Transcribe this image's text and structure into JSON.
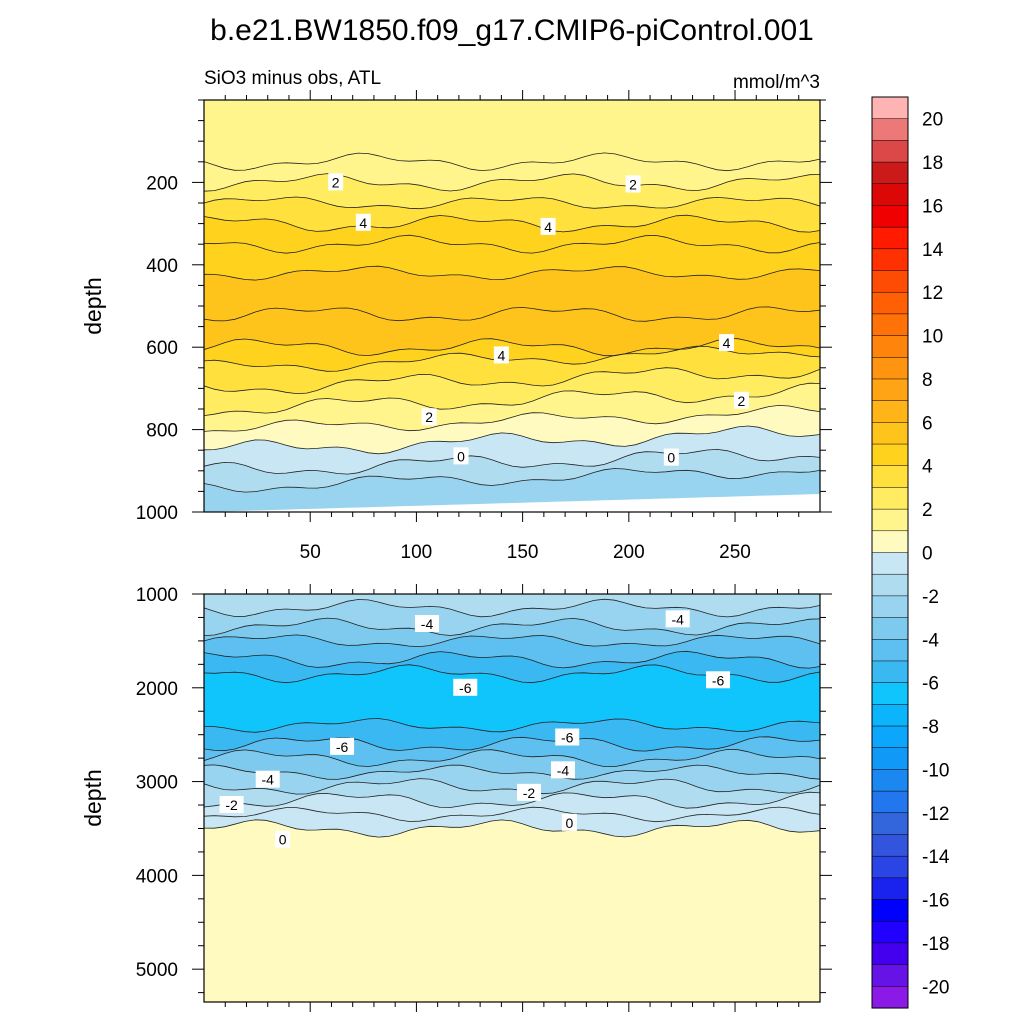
{
  "figure": {
    "title": "b.e21.BW1850.f09_g17.CMIP6-piControl.001",
    "panel_label": "SiO3 minus obs, ATL",
    "units_label": "mmol/m^3"
  },
  "chart_data": [
    {
      "type": "heatmap",
      "panel": "upper",
      "subtitle": "SiO3 minus obs, ATL",
      "units": "mmol/m^3",
      "xlabel": "",
      "ylabel": "depth",
      "xlim": [
        0,
        290
      ],
      "ylim": [
        1000,
        0
      ],
      "x_ticks": [
        50,
        100,
        150,
        200,
        250
      ],
      "y_ticks": [
        200,
        400,
        600,
        800,
        1000
      ],
      "depth_levels": [
        0,
        150,
        200,
        250,
        300,
        350,
        420,
        520,
        600,
        650,
        700,
        750,
        800,
        850,
        900,
        940,
        1000
      ],
      "band_values": [
        1,
        1.5,
        2.5,
        3.5,
        4.2,
        4.6,
        5.2,
        5.2,
        4.5,
        3.5,
        2.5,
        1.5,
        0.5,
        -0.5,
        -1.3,
        -2.2
      ],
      "contour_labels": [
        {
          "text": "2",
          "x": 62,
          "depth": 200
        },
        {
          "text": "2",
          "x": 202,
          "depth": 205
        },
        {
          "text": "4",
          "x": 75,
          "depth": 298
        },
        {
          "text": "4",
          "x": 162,
          "depth": 308
        },
        {
          "text": "4",
          "x": 140,
          "depth": 620
        },
        {
          "text": "4",
          "x": 246,
          "depth": 590
        },
        {
          "text": "2",
          "x": 106,
          "depth": 770
        },
        {
          "text": "2",
          "x": 253,
          "depth": 730
        },
        {
          "text": "0",
          "x": 121,
          "depth": 865
        },
        {
          "text": "0",
          "x": 220,
          "depth": 868
        }
      ]
    },
    {
      "type": "heatmap",
      "panel": "lower",
      "xlabel": "",
      "ylabel": "depth",
      "xlim": [
        0,
        290
      ],
      "ylim": [
        5350,
        1000
      ],
      "x_ticks": [
        50,
        100,
        150,
        200,
        250
      ],
      "y_ticks": [
        1000,
        2000,
        3000,
        4000,
        5000
      ],
      "depth_levels": [
        1000,
        1150,
        1350,
        1500,
        1700,
        1850,
        2400,
        2600,
        2750,
        2900,
        3050,
        3200,
        3350,
        3500,
        5350
      ],
      "band_values": [
        -1.5,
        -2.5,
        -3.5,
        -4.5,
        -5.5,
        -6.5,
        -5.5,
        -4.5,
        -3.5,
        -2.5,
        -1.5,
        -0.7,
        -0.3,
        0.8
      ],
      "contour_labels": [
        {
          "text": "-4",
          "x": 105,
          "depth": 1320
        },
        {
          "text": "-4",
          "x": 223,
          "depth": 1270
        },
        {
          "text": "-6",
          "x": 123,
          "depth": 2000
        },
        {
          "text": "-6",
          "x": 242,
          "depth": 1920
        },
        {
          "text": "-6",
          "x": 65,
          "depth": 2630
        },
        {
          "text": "-6",
          "x": 171,
          "depth": 2530
        },
        {
          "text": "-4",
          "x": 30,
          "depth": 2980
        },
        {
          "text": "-4",
          "x": 169,
          "depth": 2880
        },
        {
          "text": "-2",
          "x": 13,
          "depth": 3250
        },
        {
          "text": "-2",
          "x": 153,
          "depth": 3120
        },
        {
          "text": "0",
          "x": 37,
          "depth": 3620
        },
        {
          "text": "0",
          "x": 172,
          "depth": 3440
        }
      ]
    }
  ],
  "colorbar": {
    "levels": [
      -21,
      -20,
      -19,
      -18,
      -17,
      -16,
      -15,
      -14,
      -13,
      -12,
      -11,
      -10,
      -9,
      -8,
      -7,
      -6,
      -5,
      -4,
      -3,
      -2,
      -1,
      0,
      1,
      2,
      3,
      4,
      5,
      6,
      7,
      8,
      9,
      10,
      11,
      12,
      13,
      14,
      15,
      16,
      17,
      18,
      19,
      20,
      21
    ],
    "colors": [
      "#8c1ae6",
      "#6614e6",
      "#4400ee",
      "#2200ff",
      "#0000ff",
      "#1a22ee",
      "#2b44e6",
      "#3355dd",
      "#3366dd",
      "#2277ee",
      "#1a88f0",
      "#1199f8",
      "#0ca6fc",
      "#0cb4fc",
      "#10c4fc",
      "#3ab8f2",
      "#5ec0f0",
      "#7dcaee",
      "#98d4f0",
      "#b0dcf0",
      "#c8e6f4",
      "#fefac0",
      "#fff58c",
      "#ffec60",
      "#ffe03c",
      "#ffd21e",
      "#ffc41c",
      "#ffb418",
      "#ffa414",
      "#ff9410",
      "#ff840c",
      "#ff7208",
      "#ff6006",
      "#ff4c04",
      "#ff3002",
      "#ff1a00",
      "#f00000",
      "#dc0808",
      "#cc1a1a",
      "#dc4848",
      "#ec7878",
      "#ffb4b4"
    ],
    "tick_labels": [
      "20",
      "18",
      "16",
      "14",
      "12",
      "10",
      "8",
      "6",
      "4",
      "2",
      "0",
      "-2",
      "-4",
      "-6",
      "-8",
      "-10",
      "-12",
      "-14",
      "-16",
      "-18",
      "-20"
    ],
    "tick_values": [
      20,
      18,
      16,
      14,
      12,
      10,
      8,
      6,
      4,
      2,
      0,
      -2,
      -4,
      -6,
      -8,
      -10,
      -12,
      -14,
      -16,
      -18,
      -20
    ]
  }
}
